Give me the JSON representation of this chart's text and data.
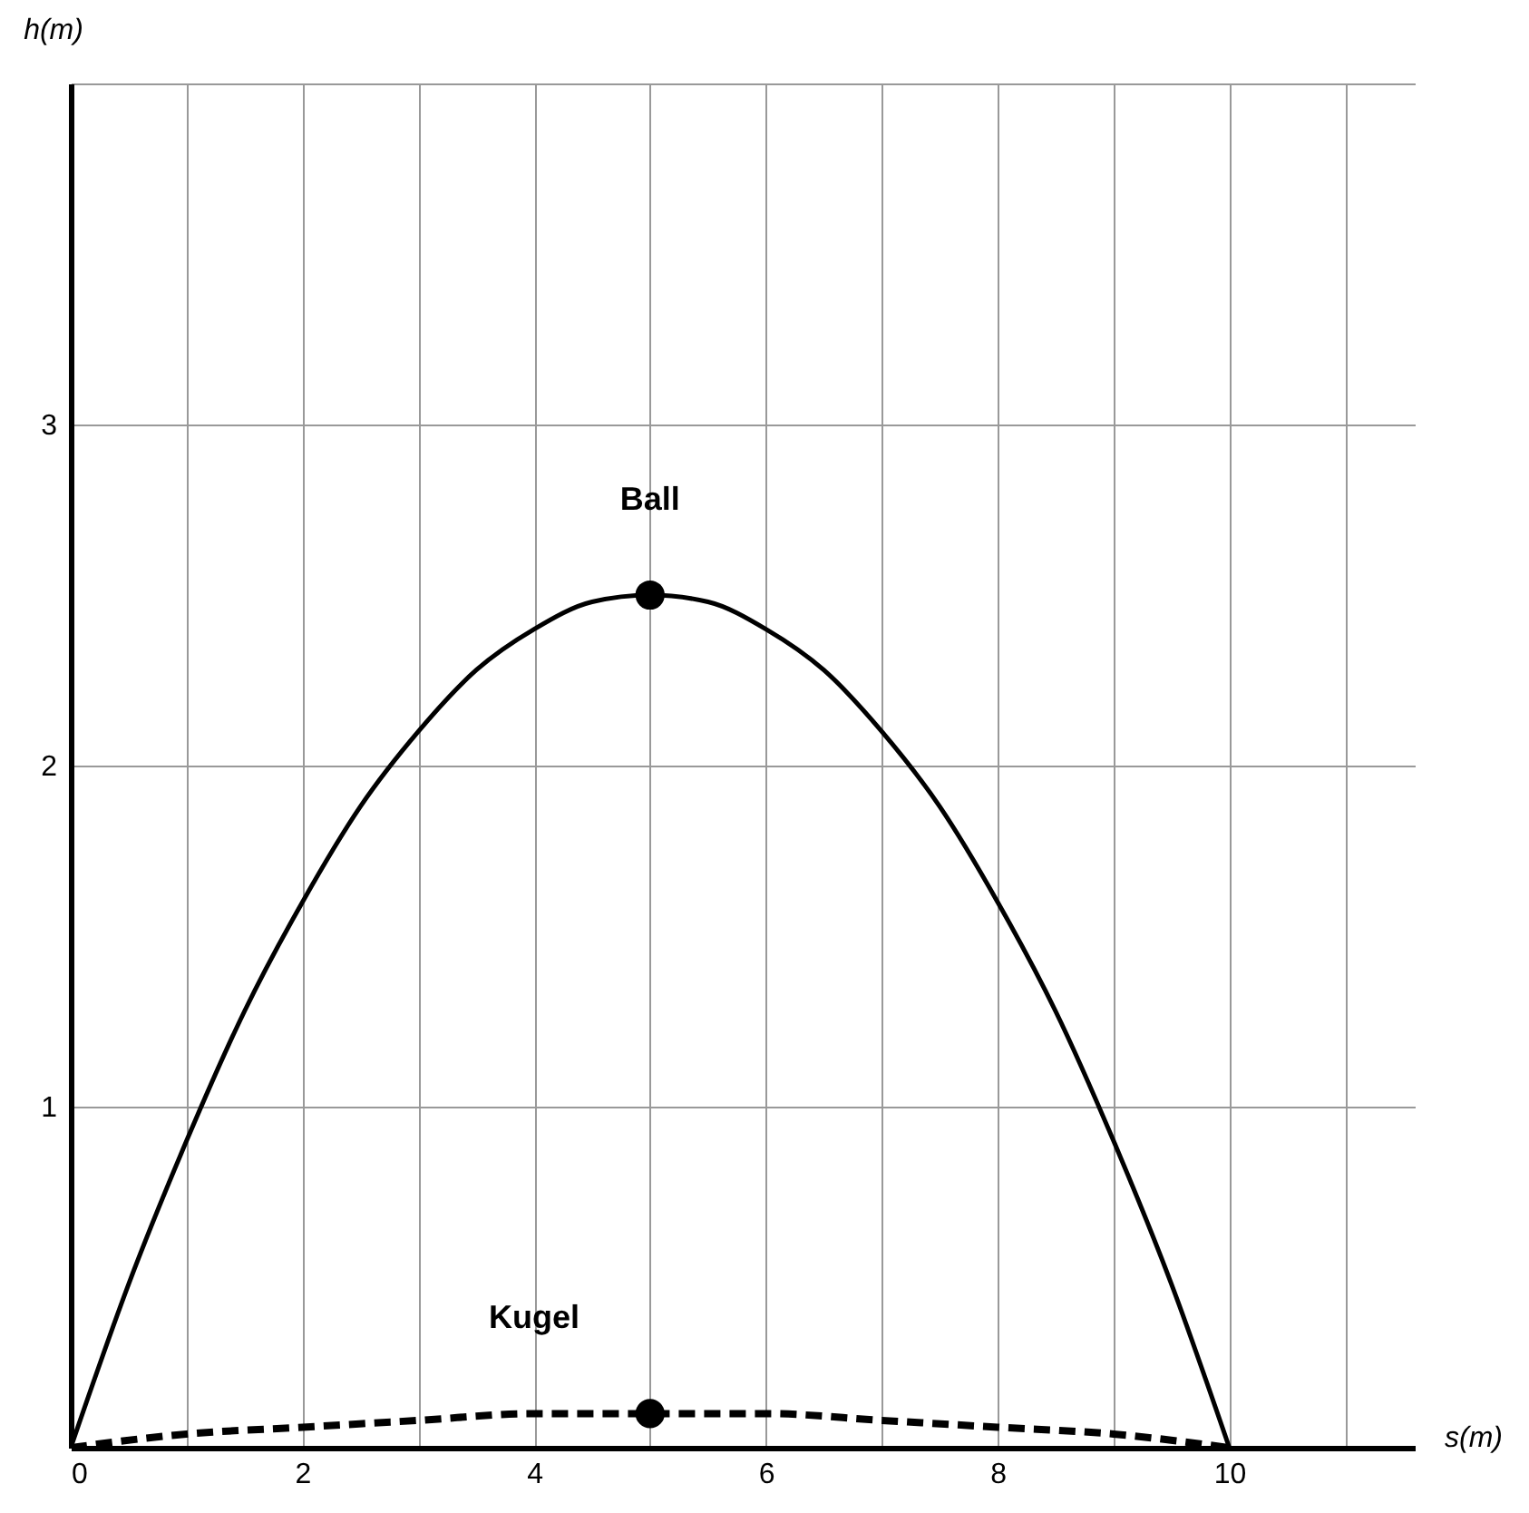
{
  "chart_data": {
    "type": "line",
    "xlabel": "s(m)",
    "ylabel": "h(m)",
    "xlim": [
      0,
      11.6
    ],
    "ylim": [
      0,
      4
    ],
    "xticks": [
      0,
      {
        "value": 1,
        "label": null
      },
      2,
      {
        "value": 3,
        "label": null
      },
      4,
      {
        "value": 5,
        "label": null
      },
      6,
      {
        "value": 7,
        "label": null
      },
      8,
      {
        "value": 9,
        "label": null
      },
      10,
      {
        "value": 11,
        "label": null
      }
    ],
    "yticks": [
      {
        "value": 0,
        "label": null
      },
      1,
      2,
      3,
      {
        "value": 4,
        "label": null
      }
    ],
    "grid": true,
    "series": [
      {
        "name": "Ball",
        "line_style": "solid",
        "color": "#000000",
        "x": [
          0,
          0.5,
          1,
          1.5,
          2,
          2.5,
          3,
          3.5,
          4,
          4.5,
          5,
          5.5,
          6,
          6.5,
          7,
          7.5,
          8,
          8.5,
          9,
          9.5,
          10
        ],
        "values": [
          0,
          0.48,
          0.9,
          1.28,
          1.6,
          1.88,
          2.1,
          2.28,
          2.4,
          2.48,
          2.5,
          2.48,
          2.4,
          2.28,
          2.1,
          1.88,
          1.6,
          1.28,
          0.9,
          0.48,
          0
        ]
      },
      {
        "name": "Kugel",
        "line_style": "dashed",
        "color": "#000000",
        "x": [
          0,
          1,
          2,
          3,
          4,
          5,
          6,
          7,
          8,
          9,
          10
        ],
        "values": [
          0,
          0.04,
          0.06,
          0.08,
          0.1,
          0.1,
          0.1,
          0.08,
          0.06,
          0.04,
          0
        ]
      },
      {
        "type": "scatter",
        "marker": "circle",
        "color": "#000000",
        "x": [
          5
        ],
        "values": [
          2.5
        ]
      },
      {
        "type": "scatter",
        "marker": "circle",
        "color": "#000000",
        "x": [
          5
        ],
        "values": [
          0.1
        ]
      }
    ]
  }
}
